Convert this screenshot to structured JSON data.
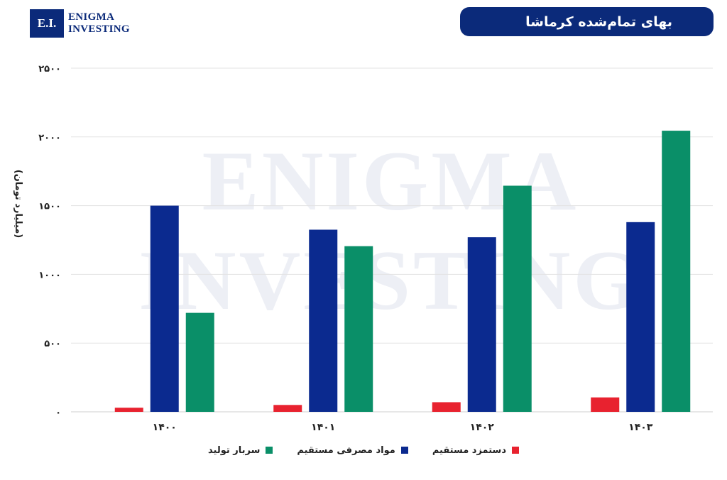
{
  "header": {
    "logo_mark": "E.I.",
    "logo_line1": "Enigma",
    "logo_line2": "Investing",
    "title": "بهای تمام‌شده کرماشا"
  },
  "watermark": {
    "line1": "Enigma",
    "line2": "Investing"
  },
  "colors": {
    "brand": "#0b2a7a",
    "red": "#e8222f",
    "blue": "#0b2a8f",
    "green": "#0a8f68"
  },
  "chart_data": {
    "type": "bar",
    "title": "",
    "ylabel": "(میلیارد تومان)",
    "xlabel": "",
    "categories": [
      "۱۴۰۰",
      "۱۴۰۱",
      "۱۴۰۲",
      "۱۴۰۳"
    ],
    "yticks": [
      "۰",
      "۵۰۰",
      "۱۰۰۰",
      "۱۵۰۰",
      "۲۰۰۰",
      "۲۵۰۰"
    ],
    "ylim": [
      0,
      2500
    ],
    "grid": true,
    "legend_position": "bottom",
    "series": [
      {
        "name": "دستمزد مستقیم",
        "color": "#e8222f",
        "values": [
          30,
          50,
          70,
          105
        ]
      },
      {
        "name": "مواد مصرفی مستقیم",
        "color": "#0b2a8f",
        "values": [
          1500,
          1325,
          1270,
          1380
        ]
      },
      {
        "name": "سربار تولید",
        "color": "#0a8f68",
        "values": [
          720,
          1205,
          1645,
          2045
        ]
      }
    ]
  }
}
